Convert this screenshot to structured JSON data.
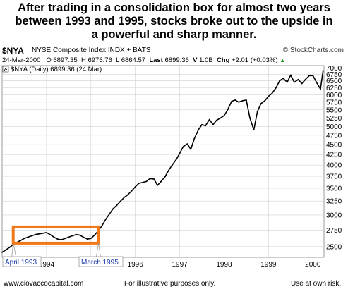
{
  "headline": [
    "After trading in a consolidation box for almost two years",
    "between 1993 and 1995, stocks broke out to the upside in",
    "a powerful and sharp manner."
  ],
  "header": {
    "symbol": "$NYA",
    "index_name": "NYSE Composite Index  INDX + BATS",
    "brand": "© StockCharts.com"
  },
  "quote": {
    "date": "24-Mar-2000",
    "open_label": "O",
    "open": "6897.35",
    "high_label": "H",
    "high": "6976.76",
    "low_label": "L",
    "low": "6864.57",
    "last_label": "Last",
    "last": "6899.36",
    "volume_label": "V",
    "volume": "1.0B",
    "change_label": "Chg",
    "change": "+2.01 (+0.03%)",
    "change_arrow": "▲"
  },
  "legend": "$NYA (Daily) 6899.36 (24 Mar)",
  "annotations": {
    "start_label": "April 1993",
    "end_label": "March 1995"
  },
  "footer": {
    "website": "www.ciovaccocapital.com",
    "note": "For illustrative purposes only.",
    "risk": "Use at own risk."
  },
  "colors": {
    "box": "#f07818",
    "price": "#000000",
    "grid": "#d0d0d0",
    "label_text": "#1a3ca8"
  },
  "chart_data": {
    "type": "line",
    "series": [
      {
        "name": "$NYA (Daily)",
        "x": [
          1993.0,
          1993.08,
          1993.17,
          1993.25,
          1993.33,
          1993.42,
          1993.5,
          1993.58,
          1993.67,
          1993.75,
          1993.83,
          1993.92,
          1994.0,
          1994.08,
          1994.17,
          1994.25,
          1994.33,
          1994.42,
          1994.5,
          1994.58,
          1994.67,
          1994.75,
          1994.83,
          1994.92,
          1995.0,
          1995.08,
          1995.17,
          1995.25,
          1995.33,
          1995.42,
          1995.5,
          1995.58,
          1995.67,
          1995.75,
          1995.83,
          1995.92,
          1996.0,
          1996.08,
          1996.17,
          1996.25,
          1996.33,
          1996.42,
          1996.5,
          1996.58,
          1996.67,
          1996.75,
          1996.83,
          1996.92,
          1997.0,
          1997.08,
          1997.17,
          1997.25,
          1997.33,
          1997.42,
          1997.5,
          1997.58,
          1997.67,
          1997.75,
          1997.83,
          1997.92,
          1998.0,
          1998.08,
          1998.17,
          1998.25,
          1998.33,
          1998.42,
          1998.5,
          1998.58,
          1998.67,
          1998.75,
          1998.83,
          1998.92,
          1999.0,
          1999.08,
          1999.17,
          1999.25,
          1999.33,
          1999.42,
          1999.5,
          1999.58,
          1999.67,
          1999.75,
          1999.83,
          1999.92,
          2000.0,
          2000.08,
          2000.17,
          2000.23
        ],
        "y": [
          2420,
          2450,
          2490,
          2530,
          2560,
          2590,
          2620,
          2640,
          2660,
          2680,
          2690,
          2700,
          2710,
          2680,
          2640,
          2610,
          2600,
          2620,
          2640,
          2660,
          2680,
          2670,
          2640,
          2610,
          2620,
          2670,
          2740,
          2820,
          2920,
          3020,
          3110,
          3170,
          3250,
          3320,
          3370,
          3450,
          3530,
          3600,
          3620,
          3640,
          3700,
          3690,
          3560,
          3640,
          3740,
          3880,
          4000,
          4130,
          4280,
          4450,
          4520,
          4380,
          4660,
          4900,
          5050,
          5020,
          5200,
          5050,
          5180,
          5250,
          5320,
          5500,
          5780,
          5820,
          5750,
          5800,
          5820,
          5250,
          4900,
          5450,
          5700,
          5800,
          5950,
          6050,
          6250,
          6500,
          6600,
          6450,
          6720,
          6450,
          6550,
          6400,
          6550,
          6700,
          6700,
          6450,
          6200,
          6899.36
        ]
      }
    ],
    "x_ticks": [
      "1994",
      "1995",
      "1996",
      "1997",
      "1998",
      "1999",
      "2000"
    ],
    "y_ticks": [
      2500,
      2750,
      3000,
      3250,
      3500,
      3750,
      4000,
      4250,
      4500,
      4750,
      5000,
      5250,
      5500,
      5750,
      6000,
      6250,
      6500,
      6750,
      7000
    ],
    "xlim": [
      1993.0,
      2000.25
    ],
    "ylim": [
      2350,
      7100
    ],
    "y_scale": "log",
    "grid": true,
    "consolidation_box": {
      "x_start": 1993.25,
      "x_end": 1995.17,
      "y_low": 2550,
      "y_high": 2800
    }
  }
}
